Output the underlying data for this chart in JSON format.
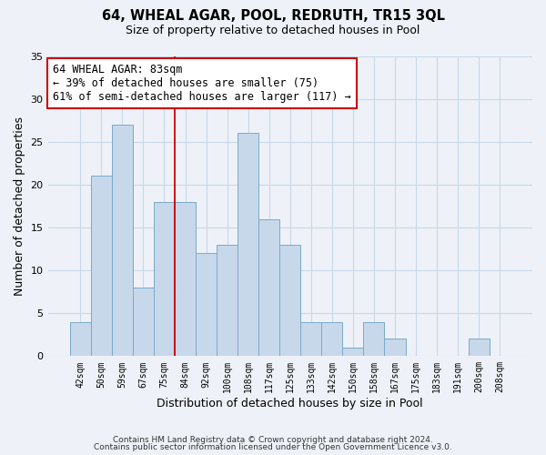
{
  "title": "64, WHEAL AGAR, POOL, REDRUTH, TR15 3QL",
  "subtitle": "Size of property relative to detached houses in Pool",
  "xlabel": "Distribution of detached houses by size in Pool",
  "ylabel": "Number of detached properties",
  "footer_line1": "Contains HM Land Registry data © Crown copyright and database right 2024.",
  "footer_line2": "Contains public sector information licensed under the Open Government Licence v3.0.",
  "bin_labels": [
    "42sqm",
    "50sqm",
    "59sqm",
    "67sqm",
    "75sqm",
    "84sqm",
    "92sqm",
    "100sqm",
    "108sqm",
    "117sqm",
    "125sqm",
    "133sqm",
    "142sqm",
    "150sqm",
    "158sqm",
    "167sqm",
    "175sqm",
    "183sqm",
    "191sqm",
    "200sqm",
    "208sqm"
  ],
  "bar_values": [
    4,
    21,
    27,
    8,
    18,
    18,
    12,
    13,
    26,
    16,
    13,
    4,
    4,
    1,
    4,
    2,
    0,
    0,
    0,
    2,
    0
  ],
  "bar_color": "#c8d8eb",
  "bar_edge_color": "#7aaac8",
  "vline_x_index": 4,
  "vline_color": "#cc0000",
  "annotation_line1": "64 WHEAL AGAR: 83sqm",
  "annotation_line2": "← 39% of detached houses are smaller (75)",
  "annotation_line3": "61% of semi-detached houses are larger (117) →",
  "annotation_box_edge_color": "#cc0000",
  "annotation_box_face_color": "#ffffff",
  "ylim": [
    0,
    35
  ],
  "yticks": [
    0,
    5,
    10,
    15,
    20,
    25,
    30,
    35
  ],
  "grid_color": "#c8d8e8",
  "bg_color": "#eef2f8",
  "plot_bg_color": "#eef2f8"
}
